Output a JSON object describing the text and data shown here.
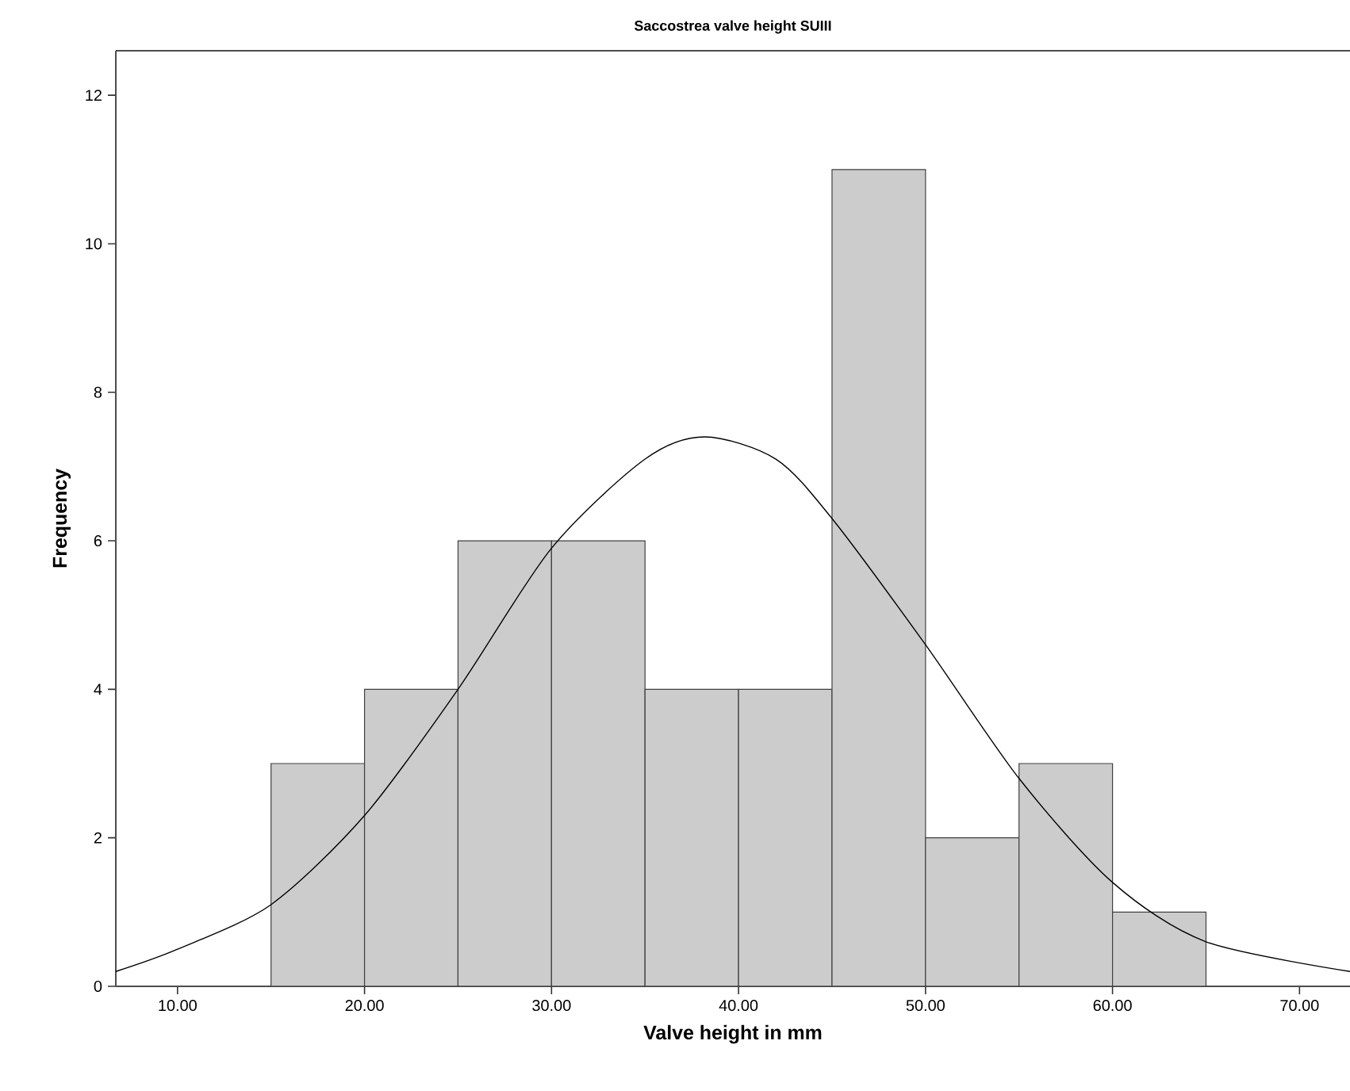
{
  "chart_data": {
    "type": "histogram",
    "title": "Saccostrea valve height SUIII",
    "xlabel": "Valve height in mm",
    "ylabel": "Frequency",
    "bins": [
      15,
      20,
      25,
      30,
      35,
      40,
      45,
      50,
      55,
      60,
      65
    ],
    "values": [
      3,
      4,
      6,
      6,
      4,
      4,
      11,
      2,
      3,
      1
    ],
    "color": "#cccccc",
    "series": [
      {
        "type": "line",
        "color": "#000000",
        "x": [
          6.7,
          10,
          15,
          20,
          25,
          30,
          35,
          38.2,
          42,
          45,
          50,
          55,
          60,
          65,
          72.7
        ],
        "values": [
          0.2,
          0.5,
          1.1,
          2.3,
          4.0,
          5.9,
          7.1,
          7.4,
          7.1,
          6.3,
          4.6,
          2.8,
          1.4,
          0.6,
          0.2
        ]
      }
    ],
    "xlim": [
      6.7,
      72.7
    ],
    "ylim": [
      0,
      12.6
    ],
    "xticks": [
      {
        "value": 10,
        "label": "10.00"
      },
      {
        "value": 20,
        "label": "20.00"
      },
      {
        "value": 30,
        "label": "30.00"
      },
      {
        "value": 40,
        "label": "40.00"
      },
      {
        "value": 50,
        "label": "50.00"
      },
      {
        "value": 60,
        "label": "60.00"
      },
      {
        "value": 70,
        "label": "70.00"
      }
    ],
    "yticks": [
      0,
      2,
      4,
      6,
      8,
      10,
      12
    ],
    "grid": false
  }
}
